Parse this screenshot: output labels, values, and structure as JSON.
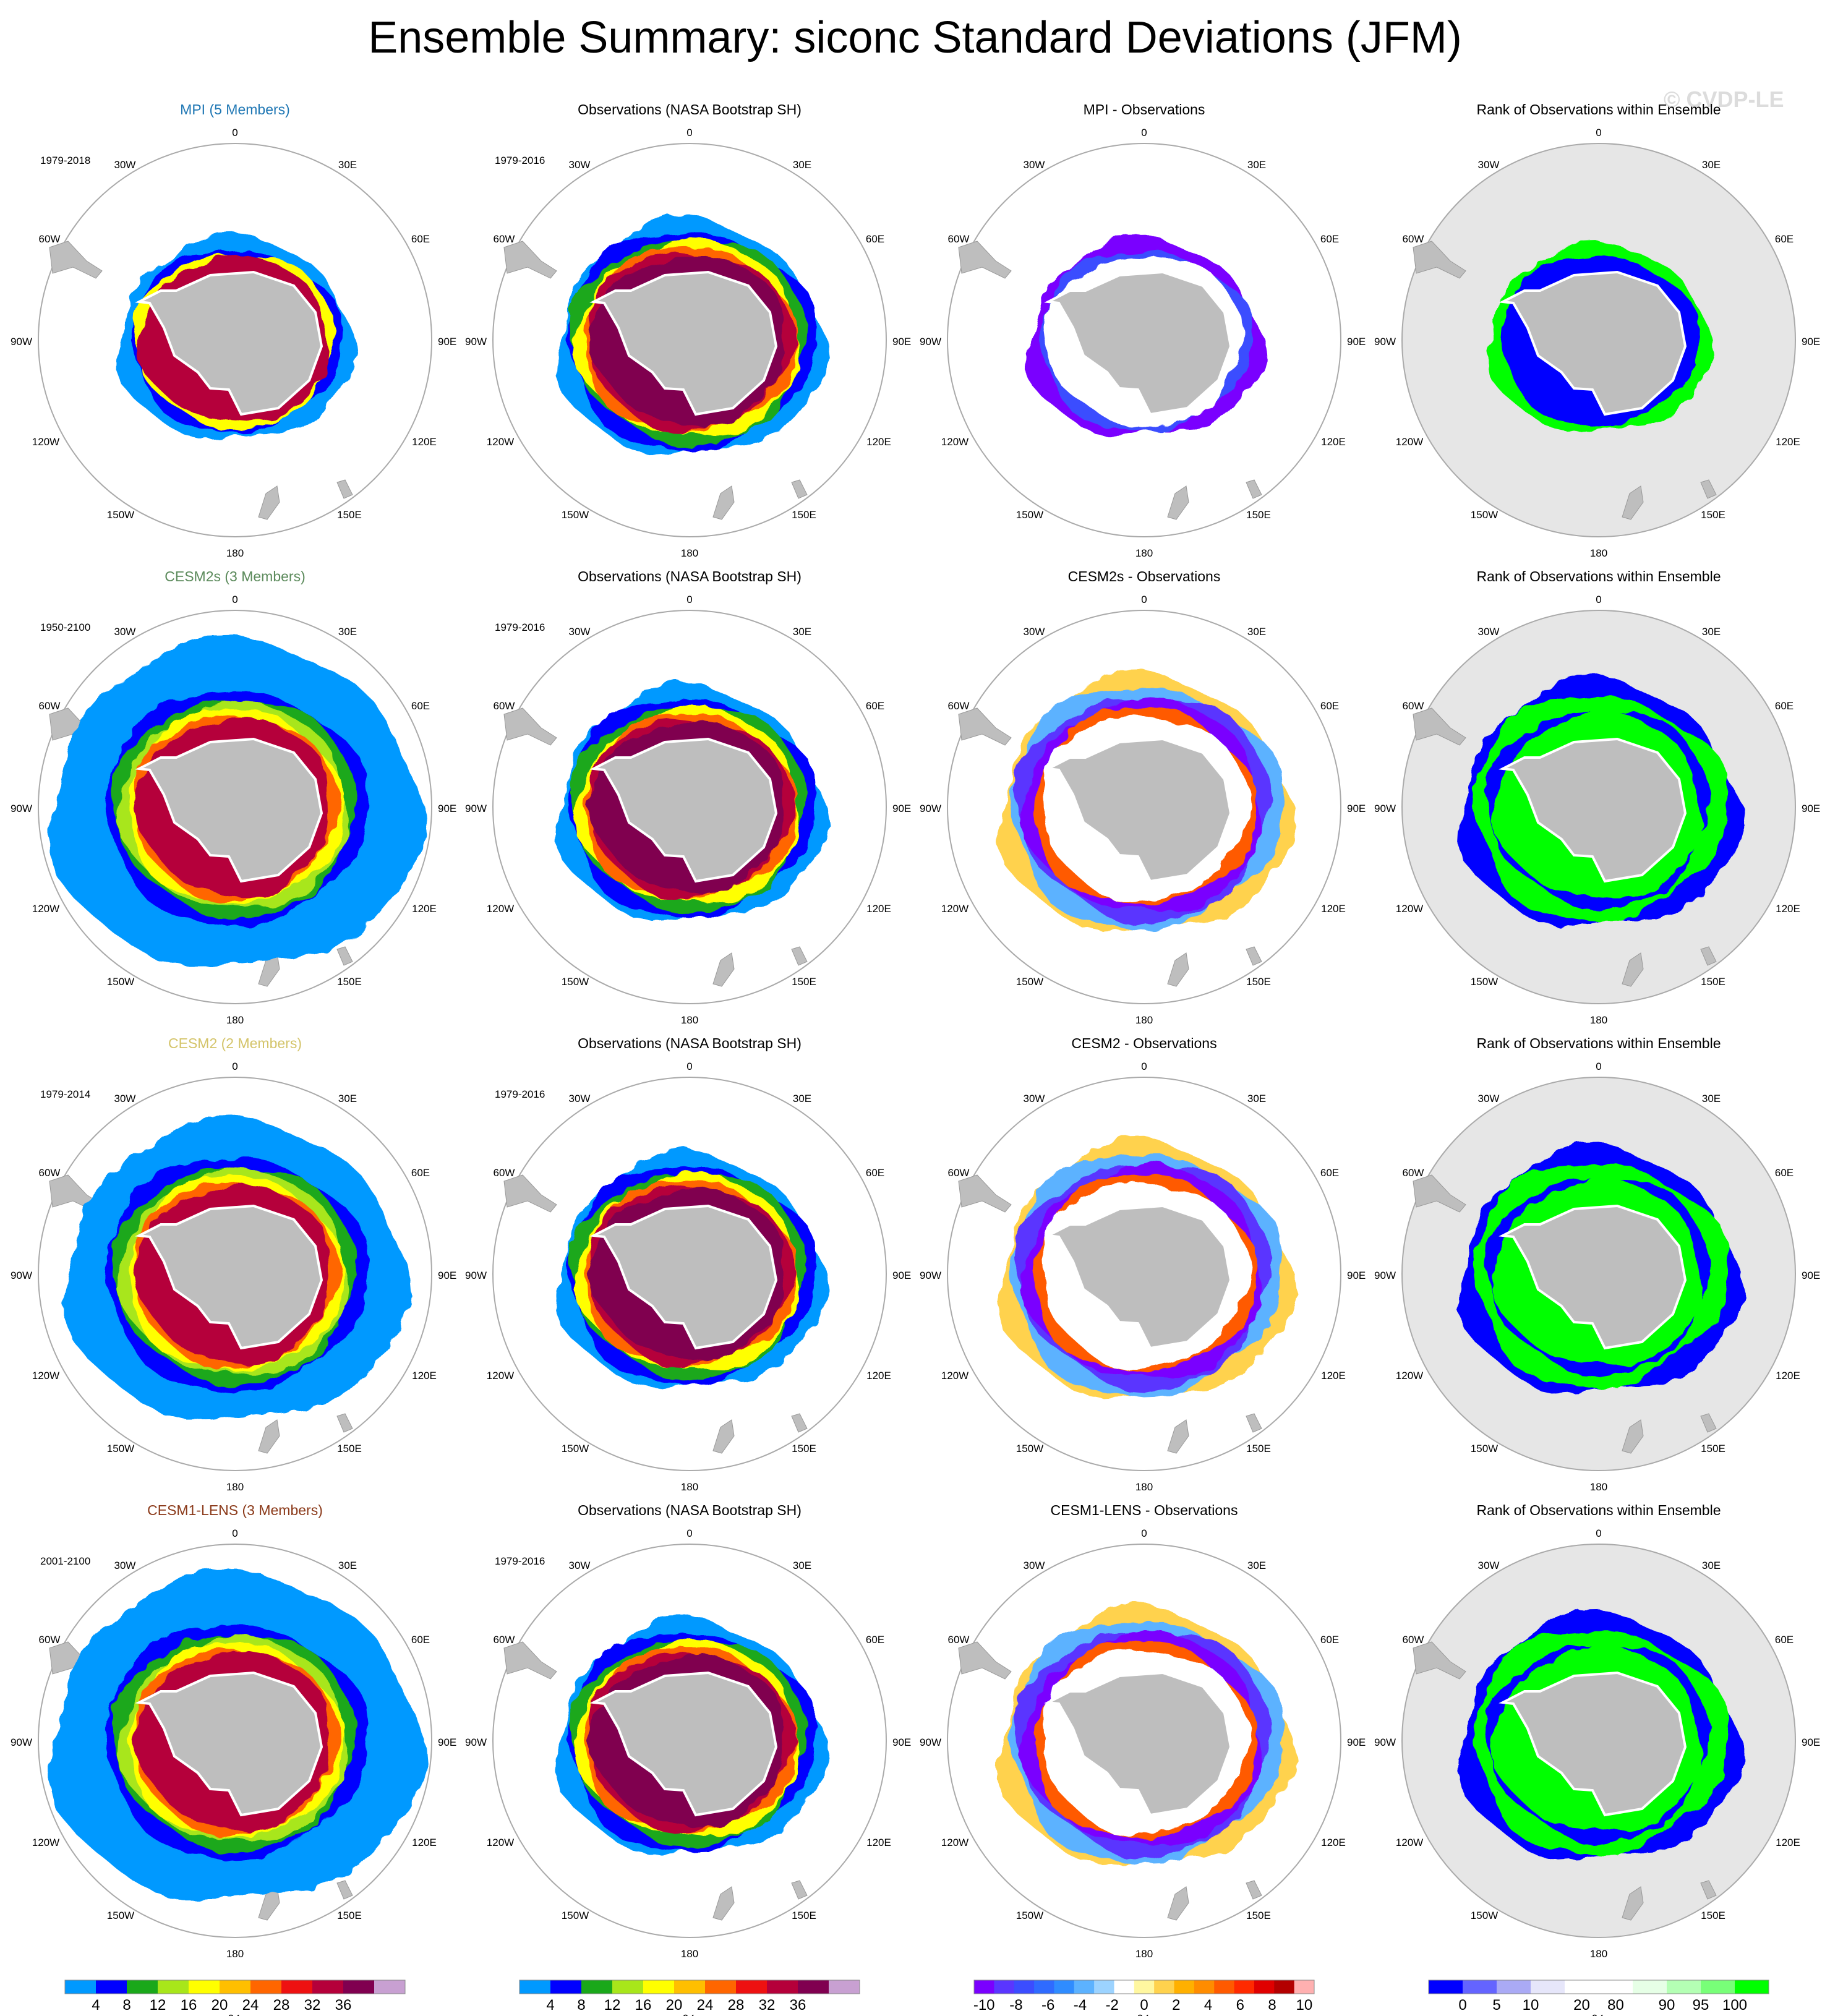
{
  "title": "Ensemble Summary: siconc Standard Deviations (JFM)",
  "watermark": "© CVDP-LE",
  "colors": {
    "land": "#bebebe",
    "rank_background": "#e6e6e6",
    "map_border": "#aaaaaa",
    "model_title_colors": [
      "#1f77b4",
      "#5b8a5b",
      "#d4c46a",
      "#8b3a1a"
    ]
  },
  "rows": [
    {
      "model_title": "MPI (5 Members)",
      "model_years": "1979-2018",
      "obs_title": "Observations (NASA Bootstrap SH)",
      "obs_years": "1979-2016",
      "diff_title": "MPI - Observations",
      "rank_title": "Rank of Observations within Ensemble"
    },
    {
      "model_title": "CESM2s (3 Members)",
      "model_years": "1950-2100",
      "obs_title": "Observations (NASA Bootstrap SH)",
      "obs_years": "1979-2016",
      "diff_title": "CESM2s - Observations",
      "rank_title": "Rank of Observations within Ensemble"
    },
    {
      "model_title": "CESM2 (2 Members)",
      "model_years": "1979-2014",
      "obs_title": "Observations (NASA Bootstrap SH)",
      "obs_years": "1979-2016",
      "diff_title": "CESM2 - Observations",
      "rank_title": "Rank of Observations within Ensemble"
    },
    {
      "model_title": "CESM1-LENS (3 Members)",
      "model_years": "2001-2100",
      "obs_title": "Observations (NASA Bootstrap SH)",
      "obs_years": "1979-2016",
      "diff_title": "CESM1-LENS - Observations",
      "rank_title": "Rank of Observations within Ensemble"
    }
  ],
  "map_labels": {
    "top": "0",
    "bottom": "180",
    "left": "90W",
    "right": "90E",
    "upper_left_a": "30W",
    "upper_left_b": "60W",
    "upper_right_a": "30E",
    "upper_right_b": "60E",
    "lower_left_a": "120W",
    "lower_left_b": "150W",
    "lower_right_a": "120E",
    "lower_right_b": "150E"
  },
  "colorbars": {
    "sd": {
      "colors": [
        "#0099ff",
        "#0000ff",
        "#1aa81a",
        "#a8e61a",
        "#ffff00",
        "#ffbf00",
        "#ff6600",
        "#ee1111",
        "#b5003a",
        "#800050",
        "#c8a0d2"
      ],
      "labels": [
        "4",
        "8",
        "12",
        "16",
        "20",
        "24",
        "28",
        "32",
        "36"
      ],
      "unit": "%"
    },
    "diff": {
      "colors": [
        "#7a00ff",
        "#5a36ff",
        "#3b4dff",
        "#2f6bff",
        "#2f8cff",
        "#5cb2ff",
        "#9cd3ff",
        "#ffffff",
        "#fff7a0",
        "#ffd24d",
        "#ffb000",
        "#ff8c00",
        "#ff5a00",
        "#ff2a00",
        "#e00000",
        "#b30000",
        "#ffb0b0"
      ],
      "labels": [
        "-10",
        "-8",
        "-6",
        "-4",
        "-2",
        "0",
        "2",
        "4",
        "6",
        "8",
        "10"
      ],
      "unit": "%"
    },
    "rank": {
      "colors": [
        "#0000ff",
        "#6464ff",
        "#aaaaf5",
        "#e6e6fa",
        "#ffffff",
        "#ffffff",
        "#e6ffe6",
        "#b4ffb4",
        "#78ff78",
        "#00ff00"
      ],
      "labels": [
        "0",
        "5",
        "10",
        "20",
        "80",
        "90",
        "95",
        "100"
      ],
      "unit": "%"
    }
  }
}
